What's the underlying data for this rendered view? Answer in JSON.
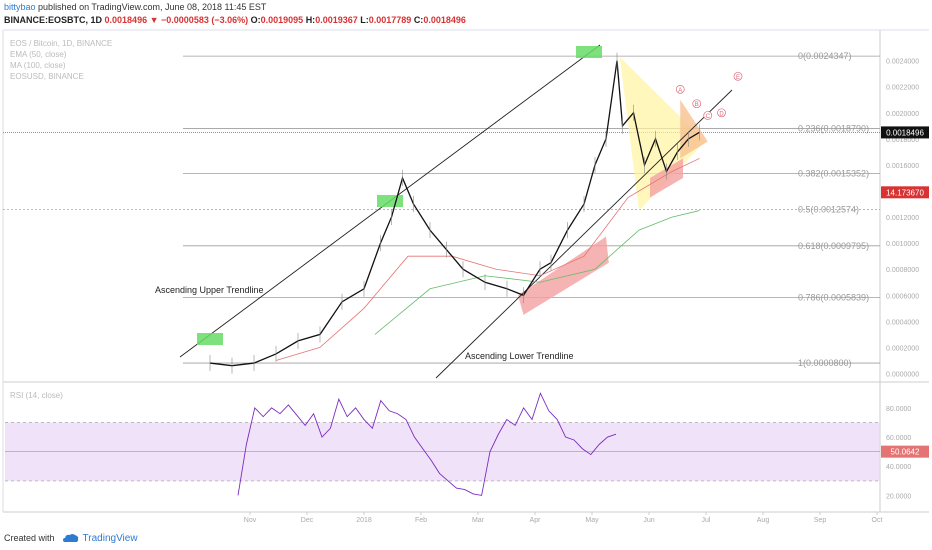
{
  "header": {
    "author": "bittybao",
    "published": "published on TradingView.com, June 08, 2018 11:45 EST",
    "symbol_line": "BINANCE:EOSBTC, 1D",
    "last": "0.0018496",
    "change": "−0.0000583 (−3.06%)",
    "ohlc": {
      "o_label": "O:",
      "o": "0.0019095",
      "h_label": "H:",
      "h": "0.0019367",
      "l_label": "L:",
      "l": "0.0017789",
      "c_label": "C:",
      "c": "0.0018496"
    }
  },
  "legend": [
    "EOS / Bitcoin, 1D, BINANCE",
    "EMA (50, close)",
    "MA (100, close)",
    "EOSUSD, BINANCE"
  ],
  "annotations": {
    "upper": "Ascending Upper Trendline",
    "lower": "Ascending Lower Trendline",
    "marks": [
      "A",
      "B",
      "C",
      "D",
      "E"
    ]
  },
  "price_badge": "0.0018496",
  "usd_badge": "14.173670",
  "rsi": {
    "title": "RSI (14, close)",
    "badge": "50.0642",
    "levels": [
      70,
      30
    ]
  },
  "footer": {
    "created": "Created with",
    "brand": "TradingView"
  },
  "colors": {
    "up": "#111111",
    "down": "#111111",
    "ema": "#e57373",
    "ma": "#66bb6a",
    "rsi": "#7b2cbf",
    "rsi_band": "#e9d5f7",
    "fib": "#9e9e9e",
    "green_box": "#66dd66",
    "yellow": "#fff3a0",
    "red_zone": "#f4a0a0"
  },
  "chart_data": {
    "type": "line",
    "title": "EOS / Bitcoin, 1D, BINANCE",
    "x_ticks": [
      "Nov",
      "Dec",
      "2018",
      "Feb",
      "Mar",
      "Apr",
      "May",
      "Jun",
      "Jul",
      "Aug",
      "Sep",
      "Oct"
    ],
    "y_ticks": [
      "0.0024000",
      "0.0022000",
      "0.0020000",
      "0.0018000",
      "0.0016000",
      "0.0014000",
      "0.0012000",
      "0.0010000",
      "0.0008000",
      "0.0006000",
      "0.0004000",
      "0.0002000",
      "0.0000000"
    ],
    "ylim": [
      -5e-05,
      0.00262
    ],
    "fib_levels": [
      {
        "label": "0(0.0024347)",
        "value": 0.0024347
      },
      {
        "label": "0.236(0.0018790)",
        "value": 0.001879
      },
      {
        "label": "0.382(0.0015352)",
        "value": 0.0015352
      },
      {
        "label": "0.5(0.0012574)",
        "value": 0.0012574
      },
      {
        "label": "0.618(0.0009795)",
        "value": 0.0009795
      },
      {
        "label": "0.786(0.0005839)",
        "value": 0.0005839
      },
      {
        "label": "1(0.0000800)",
        "value": 8e-05
      }
    ],
    "price": [
      [
        0.0,
        8e-05
      ],
      [
        0.04,
        6e-05
      ],
      [
        0.08,
        8e-05
      ],
      [
        0.12,
        0.00015
      ],
      [
        0.16,
        0.00025
      ],
      [
        0.2,
        0.0003
      ],
      [
        0.24,
        0.00055
      ],
      [
        0.28,
        0.00065
      ],
      [
        0.31,
        0.001
      ],
      [
        0.33,
        0.0012
      ],
      [
        0.35,
        0.0015
      ],
      [
        0.37,
        0.0013
      ],
      [
        0.4,
        0.0011
      ],
      [
        0.43,
        0.00095
      ],
      [
        0.46,
        0.0008
      ],
      [
        0.5,
        0.0007
      ],
      [
        0.54,
        0.00065
      ],
      [
        0.57,
        0.0006
      ],
      [
        0.6,
        0.0008
      ],
      [
        0.62,
        0.00085
      ],
      [
        0.65,
        0.0011
      ],
      [
        0.68,
        0.0013
      ],
      [
        0.7,
        0.0016
      ],
      [
        0.72,
        0.0018
      ],
      [
        0.74,
        0.0024
      ],
      [
        0.75,
        0.0019
      ],
      [
        0.77,
        0.002
      ],
      [
        0.79,
        0.0016
      ],
      [
        0.81,
        0.0018
      ],
      [
        0.83,
        0.00155
      ],
      [
        0.85,
        0.0017
      ],
      [
        0.87,
        0.0018
      ],
      [
        0.89,
        0.00185
      ]
    ],
    "ema": [
      [
        0.12,
        0.0001
      ],
      [
        0.2,
        0.0002
      ],
      [
        0.28,
        0.0005
      ],
      [
        0.36,
        0.0009
      ],
      [
        0.44,
        0.0009
      ],
      [
        0.52,
        0.0008
      ],
      [
        0.6,
        0.00075
      ],
      [
        0.68,
        0.0009
      ],
      [
        0.76,
        0.00135
      ],
      [
        0.84,
        0.00155
      ],
      [
        0.89,
        0.00165
      ]
    ],
    "ma": [
      [
        0.3,
        0.0003
      ],
      [
        0.4,
        0.00065
      ],
      [
        0.5,
        0.00075
      ],
      [
        0.6,
        0.0007
      ],
      [
        0.7,
        0.0008
      ],
      [
        0.78,
        0.0011
      ],
      [
        0.84,
        0.0012
      ],
      [
        0.89,
        0.00125
      ]
    ],
    "rsi_series": [
      [
        0.0,
        20
      ],
      [
        0.02,
        55
      ],
      [
        0.04,
        80
      ],
      [
        0.06,
        74
      ],
      [
        0.08,
        80
      ],
      [
        0.1,
        76
      ],
      [
        0.12,
        82
      ],
      [
        0.14,
        75
      ],
      [
        0.16,
        68
      ],
      [
        0.18,
        76
      ],
      [
        0.2,
        60
      ],
      [
        0.22,
        66
      ],
      [
        0.24,
        86
      ],
      [
        0.26,
        74
      ],
      [
        0.28,
        80
      ],
      [
        0.3,
        72
      ],
      [
        0.32,
        66
      ],
      [
        0.34,
        85
      ],
      [
        0.36,
        78
      ],
      [
        0.38,
        76
      ],
      [
        0.4,
        72
      ],
      [
        0.42,
        60
      ],
      [
        0.44,
        52
      ],
      [
        0.46,
        44
      ],
      [
        0.48,
        35
      ],
      [
        0.5,
        30
      ],
      [
        0.52,
        25
      ],
      [
        0.54,
        24
      ],
      [
        0.56,
        21
      ],
      [
        0.58,
        20
      ],
      [
        0.6,
        50
      ],
      [
        0.62,
        62
      ],
      [
        0.64,
        72
      ],
      [
        0.66,
        68
      ],
      [
        0.68,
        80
      ],
      [
        0.7,
        72
      ],
      [
        0.72,
        90
      ],
      [
        0.74,
        78
      ],
      [
        0.76,
        72
      ],
      [
        0.78,
        60
      ],
      [
        0.8,
        58
      ],
      [
        0.82,
        52
      ],
      [
        0.84,
        48
      ],
      [
        0.86,
        55
      ],
      [
        0.88,
        60
      ],
      [
        0.9,
        62
      ]
    ],
    "rsi_ticks": [
      "80.0000",
      "60.0000",
      "40.0000",
      "20.0000"
    ],
    "rsi_ylim": [
      10,
      95
    ]
  }
}
